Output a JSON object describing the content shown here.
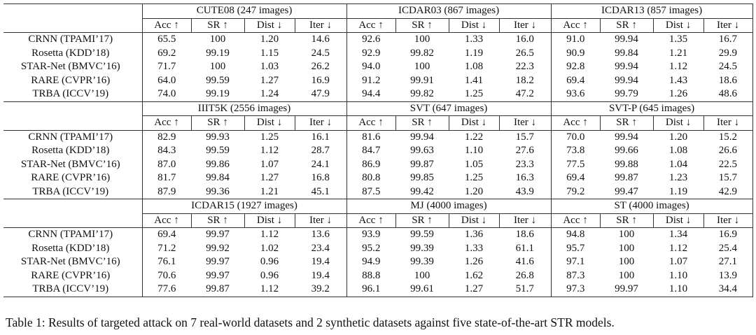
{
  "metrics": [
    "Acc ↑",
    "SR ↑",
    "Dist ↓",
    "Iter ↓"
  ],
  "models": [
    "CRNN (TPAMI’17)",
    "Rosetta (KDD’18)",
    "STAR-Net (BMVC’16)",
    "RARE (CVPR’16)",
    "TRBA (ICCV’19)"
  ],
  "sections": [
    {
      "datasets": [
        {
          "name": "CUTE08 (247 images)",
          "rows": [
            [
              "65.5",
              "100",
              "1.20",
              "14.6"
            ],
            [
              "69.2",
              "99.19",
              "1.15",
              "24.5"
            ],
            [
              "71.7",
              "100",
              "1.03",
              "26.2"
            ],
            [
              "64.0",
              "99.59",
              "1.27",
              "16.9"
            ],
            [
              "74.0",
              "99.19",
              "1.24",
              "47.9"
            ]
          ]
        },
        {
          "name": "ICDAR03 (867 images)",
          "rows": [
            [
              "92.6",
              "100",
              "1.33",
              "16.0"
            ],
            [
              "92.9",
              "99.82",
              "1.19",
              "26.5"
            ],
            [
              "94.0",
              "100",
              "1.08",
              "22.3"
            ],
            [
              "91.2",
              "99.91",
              "1.41",
              "18.2"
            ],
            [
              "94.4",
              "99.82",
              "1.25",
              "47.2"
            ]
          ]
        },
        {
          "name": "ICDAR13 (857 images)",
          "rows": [
            [
              "91.0",
              "99.94",
              "1.35",
              "16.7"
            ],
            [
              "90.9",
              "99.84",
              "1.21",
              "29.9"
            ],
            [
              "92.8",
              "99.94",
              "1.12",
              "24.5"
            ],
            [
              "69.4",
              "99.94",
              "1.43",
              "18.6"
            ],
            [
              "93.6",
              "99.79",
              "1.26",
              "48.6"
            ]
          ]
        }
      ]
    },
    {
      "datasets": [
        {
          "name": "IIIT5K (2556 images)",
          "rows": [
            [
              "82.9",
              "99.93",
              "1.25",
              "16.1"
            ],
            [
              "84.3",
              "99.59",
              "1.12",
              "28.7"
            ],
            [
              "87.0",
              "99.86",
              "1.07",
              "24.1"
            ],
            [
              "81.7",
              "99.84",
              "1.27",
              "16.8"
            ],
            [
              "87.9",
              "99.36",
              "1.21",
              "45.1"
            ]
          ]
        },
        {
          "name": "SVT (647 images)",
          "rows": [
            [
              "81.6",
              "99.94",
              "1.22",
              "15.7"
            ],
            [
              "84.7",
              "99.63",
              "1.10",
              "27.6"
            ],
            [
              "86.9",
              "99.87",
              "1.05",
              "23.3"
            ],
            [
              "80.8",
              "99.85",
              "1.25",
              "16.3"
            ],
            [
              "87.5",
              "99.42",
              "1.20",
              "43.9"
            ]
          ]
        },
        {
          "name": "SVT-P (645 images)",
          "rows": [
            [
              "70.0",
              "99.94",
              "1.20",
              "15.2"
            ],
            [
              "73.8",
              "99.66",
              "1.08",
              "26.6"
            ],
            [
              "77.5",
              "99.88",
              "1.04",
              "22.5"
            ],
            [
              "69.4",
              "99.87",
              "1.23",
              "15.7"
            ],
            [
              "79.2",
              "99.47",
              "1.19",
              "42.9"
            ]
          ]
        }
      ]
    },
    {
      "datasets": [
        {
          "name": "ICDAR15 (1927 images)",
          "rows": [
            [
              "69.4",
              "99.97",
              "1.12",
              "13.6"
            ],
            [
              "71.2",
              "99.92",
              "1.02",
              "23.4"
            ],
            [
              "76.1",
              "99.97",
              "0.96",
              "19.4"
            ],
            [
              "70.6",
              "99.97",
              "0.96",
              "19.4"
            ],
            [
              "77.6",
              "99.87",
              "1.12",
              "39.2"
            ]
          ]
        },
        {
          "name": "MJ (4000 images)",
          "rows": [
            [
              "93.9",
              "99.59",
              "1.36",
              "18.6"
            ],
            [
              "95.2",
              "99.39",
              "1.33",
              "61.1"
            ],
            [
              "94.9",
              "99.39",
              "1.26",
              "41.6"
            ],
            [
              "88.8",
              "100",
              "1.62",
              "26.8"
            ],
            [
              "96.1",
              "99.61",
              "1.27",
              "51.7"
            ]
          ]
        },
        {
          "name": "ST (4000 images)",
          "rows": [
            [
              "94.8",
              "100",
              "1.34",
              "16.9"
            ],
            [
              "95.7",
              "100",
              "1.12",
              "25.4"
            ],
            [
              "97.1",
              "100",
              "1.07",
              "27.1"
            ],
            [
              "87.3",
              "100",
              "1.10",
              "13.9"
            ],
            [
              "97.3",
              "99.97",
              "1.10",
              "34.4"
            ]
          ]
        }
      ]
    }
  ],
  "caption": "Table 1: Results of targeted attack on 7 real-world datasets and 2 synthetic datasets against five state-of-the-art STR models."
}
